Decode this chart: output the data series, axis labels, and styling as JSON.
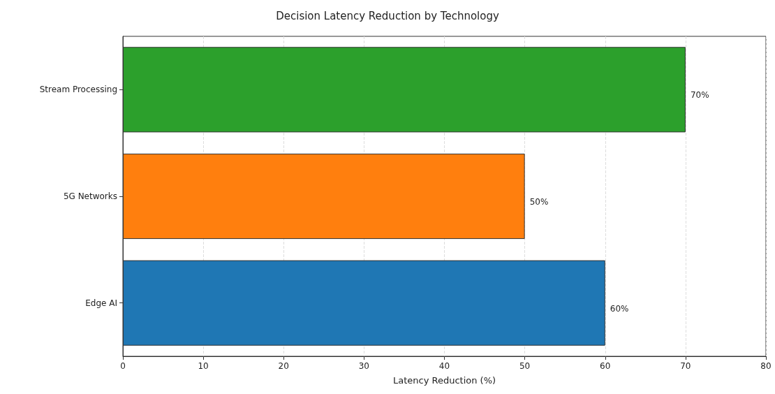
{
  "chart_data": {
    "type": "bar",
    "orientation": "horizontal",
    "title": "Decision Latency Reduction by Technology",
    "xlabel": "Latency Reduction (%)",
    "categories": [
      "Stream Processing",
      "5G Networks",
      "Edge AI"
    ],
    "values": [
      70,
      50,
      60
    ],
    "colors": [
      "#2ca02c",
      "#ff7f0e",
      "#1f77b4"
    ],
    "value_labels": [
      "70%",
      "50%",
      "60%"
    ],
    "xlim": [
      0,
      80
    ],
    "xticks": [
      0,
      10,
      20,
      30,
      40,
      50,
      60,
      70,
      80
    ],
    "grid": "x"
  }
}
